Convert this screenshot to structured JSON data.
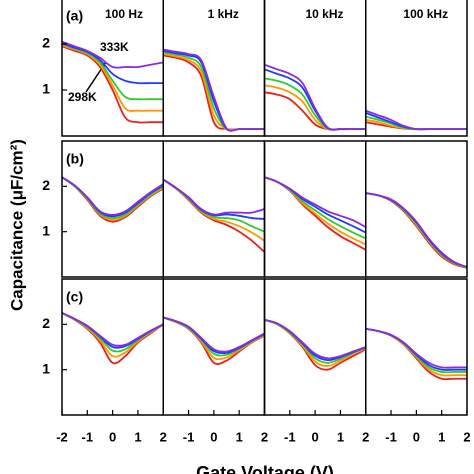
{
  "ylabel": "Capacitance (μF/cm²)",
  "xlabel": "Gate Voltage (V)",
  "chart_data": [
    {
      "type": "line",
      "title": "100 Hz",
      "panel_label": "(a)",
      "annotations": [
        "333K",
        "298K"
      ],
      "x": [
        -2,
        -1.5,
        -1,
        -0.5,
        0,
        0.5,
        1,
        1.5,
        2
      ],
      "xlim": [
        -2,
        2
      ],
      "ylim": [
        0,
        3
      ],
      "yticks": [
        1,
        2
      ],
      "series": [
        {
          "color": "#e8201e",
          "values": [
            1.95,
            1.85,
            1.75,
            1.5,
            1.0,
            0.4,
            0.3,
            0.3,
            0.3
          ]
        },
        {
          "color": "#ff9900",
          "values": [
            1.97,
            1.88,
            1.78,
            1.55,
            1.1,
            0.6,
            0.55,
            0.55,
            0.55
          ]
        },
        {
          "color": "#2ecc2e",
          "values": [
            2.0,
            1.9,
            1.8,
            1.6,
            1.2,
            0.85,
            0.8,
            0.8,
            0.8
          ]
        },
        {
          "color": "#1e3cff",
          "values": [
            2.02,
            1.92,
            1.83,
            1.65,
            1.35,
            1.2,
            1.15,
            1.15,
            1.15
          ]
        },
        {
          "color": "#8a2be2",
          "values": [
            2.05,
            1.95,
            1.85,
            1.7,
            1.5,
            1.5,
            1.5,
            1.55,
            1.6
          ]
        }
      ]
    },
    {
      "type": "line",
      "title": "1 kHz",
      "x": [
        -2,
        -1.5,
        -1,
        -0.5,
        0,
        0.5,
        1,
        1.5,
        2
      ],
      "xlim": [
        -2,
        2
      ],
      "ylim": [
        0,
        3
      ],
      "series": [
        {
          "color": "#e8201e",
          "values": [
            1.75,
            1.7,
            1.6,
            1.3,
            0.3,
            0.15,
            0.15,
            0.15,
            0.15
          ]
        },
        {
          "color": "#ff9900",
          "values": [
            1.78,
            1.73,
            1.65,
            1.4,
            0.45,
            0.15,
            0.15,
            0.15,
            0.15
          ]
        },
        {
          "color": "#2ecc2e",
          "values": [
            1.82,
            1.77,
            1.7,
            1.5,
            0.6,
            0.15,
            0.15,
            0.15,
            0.15
          ]
        },
        {
          "color": "#1e3cff",
          "values": [
            1.85,
            1.8,
            1.75,
            1.6,
            0.75,
            0.16,
            0.15,
            0.15,
            0.15
          ]
        },
        {
          "color": "#8a2be2",
          "values": [
            1.88,
            1.83,
            1.78,
            1.65,
            0.85,
            0.17,
            0.15,
            0.15,
            0.15
          ]
        }
      ]
    },
    {
      "type": "line",
      "title": "10 kHz",
      "x": [
        -2,
        -1.5,
        -1,
        -0.5,
        0,
        0.5,
        1,
        1.5,
        2
      ],
      "xlim": [
        -2,
        2
      ],
      "ylim": [
        0,
        3
      ],
      "series": [
        {
          "color": "#e8201e",
          "values": [
            0.95,
            0.9,
            0.8,
            0.55,
            0.25,
            0.15,
            0.15,
            0.15,
            0.15
          ]
        },
        {
          "color": "#ff9900",
          "values": [
            1.1,
            1.05,
            0.95,
            0.75,
            0.35,
            0.15,
            0.15,
            0.15,
            0.15
          ]
        },
        {
          "color": "#2ecc2e",
          "values": [
            1.25,
            1.2,
            1.1,
            0.9,
            0.45,
            0.16,
            0.15,
            0.15,
            0.15
          ]
        },
        {
          "color": "#1e3cff",
          "values": [
            1.45,
            1.35,
            1.25,
            1.05,
            0.55,
            0.17,
            0.15,
            0.15,
            0.15
          ]
        },
        {
          "color": "#8a2be2",
          "values": [
            1.55,
            1.45,
            1.35,
            1.15,
            0.6,
            0.18,
            0.15,
            0.15,
            0.15
          ]
        }
      ]
    },
    {
      "type": "line",
      "title": "100 kHz",
      "x": [
        -2,
        -1.5,
        -1,
        -0.5,
        0,
        0.5,
        1,
        1.5,
        2
      ],
      "xlim": [
        -2,
        2
      ],
      "ylim": [
        0,
        3
      ],
      "series": [
        {
          "color": "#e8201e",
          "values": [
            0.3,
            0.25,
            0.2,
            0.16,
            0.15,
            0.15,
            0.15,
            0.15,
            0.15
          ]
        },
        {
          "color": "#ff9900",
          "values": [
            0.35,
            0.3,
            0.22,
            0.17,
            0.15,
            0.15,
            0.15,
            0.15,
            0.15
          ]
        },
        {
          "color": "#2ecc2e",
          "values": [
            0.42,
            0.35,
            0.27,
            0.18,
            0.15,
            0.15,
            0.15,
            0.15,
            0.15
          ]
        },
        {
          "color": "#1e3cff",
          "values": [
            0.5,
            0.4,
            0.3,
            0.2,
            0.15,
            0.15,
            0.15,
            0.15,
            0.15
          ]
        },
        {
          "color": "#8a2be2",
          "values": [
            0.55,
            0.45,
            0.35,
            0.22,
            0.15,
            0.15,
            0.15,
            0.15,
            0.15
          ]
        }
      ]
    },
    {
      "type": "line",
      "panel_label": "(b)",
      "x": [
        -2,
        -1.5,
        -1,
        -0.5,
        0,
        0.5,
        1,
        1.5,
        2
      ],
      "xlim": [
        -2,
        2
      ],
      "ylim": [
        0,
        3
      ],
      "yticks": [
        1,
        2
      ],
      "series": [
        {
          "color": "#e8201e",
          "values": [
            2.2,
            2.0,
            1.7,
            1.35,
            1.22,
            1.32,
            1.55,
            1.78,
            1.95
          ]
        },
        {
          "color": "#ff9900",
          "values": [
            2.2,
            2.0,
            1.72,
            1.38,
            1.26,
            1.35,
            1.58,
            1.8,
            1.97
          ]
        },
        {
          "color": "#2ecc2e",
          "values": [
            2.2,
            2.0,
            1.73,
            1.4,
            1.3,
            1.38,
            1.6,
            1.82,
            2.0
          ]
        },
        {
          "color": "#1e3cff",
          "values": [
            2.2,
            2.02,
            1.75,
            1.43,
            1.34,
            1.42,
            1.63,
            1.85,
            2.02
          ]
        },
        {
          "color": "#8a2be2",
          "values": [
            2.2,
            2.02,
            1.76,
            1.45,
            1.37,
            1.45,
            1.66,
            1.87,
            2.05
          ]
        }
      ]
    },
    {
      "type": "line",
      "x": [
        -2,
        -1.5,
        -1,
        -0.5,
        0,
        0.5,
        1,
        1.5,
        2
      ],
      "xlim": [
        -2,
        2
      ],
      "ylim": [
        0,
        3
      ],
      "series": [
        {
          "color": "#e8201e",
          "values": [
            2.15,
            1.95,
            1.7,
            1.42,
            1.25,
            1.15,
            1.0,
            0.8,
            0.55
          ]
        },
        {
          "color": "#ff9900",
          "values": [
            2.15,
            1.95,
            1.72,
            1.44,
            1.28,
            1.22,
            1.12,
            0.98,
            0.8
          ]
        },
        {
          "color": "#2ecc2e",
          "values": [
            2.15,
            1.96,
            1.73,
            1.46,
            1.32,
            1.3,
            1.25,
            1.12,
            1.0
          ]
        },
        {
          "color": "#1e3cff",
          "values": [
            2.15,
            1.97,
            1.75,
            1.48,
            1.36,
            1.38,
            1.35,
            1.3,
            1.28
          ]
        },
        {
          "color": "#8a2be2",
          "values": [
            2.15,
            1.97,
            1.76,
            1.5,
            1.38,
            1.42,
            1.42,
            1.42,
            1.5
          ]
        }
      ]
    },
    {
      "type": "line",
      "x": [
        -2,
        -1.5,
        -1,
        -0.5,
        0,
        0.5,
        1,
        1.5,
        2
      ],
      "xlim": [
        -2,
        2
      ],
      "ylim": [
        0,
        3
      ],
      "series": [
        {
          "color": "#e8201e",
          "values": [
            2.2,
            2.1,
            1.9,
            1.6,
            1.35,
            1.1,
            0.9,
            0.75,
            0.6
          ]
        },
        {
          "color": "#ff9900",
          "values": [
            2.2,
            2.1,
            1.91,
            1.63,
            1.4,
            1.18,
            1.0,
            0.85,
            0.72
          ]
        },
        {
          "color": "#2ecc2e",
          "values": [
            2.2,
            2.1,
            1.92,
            1.67,
            1.47,
            1.28,
            1.12,
            0.98,
            0.85
          ]
        },
        {
          "color": "#1e3cff",
          "values": [
            2.2,
            2.1,
            1.94,
            1.72,
            1.55,
            1.38,
            1.25,
            1.12,
            0.98
          ]
        },
        {
          "color": "#8a2be2",
          "values": [
            2.2,
            2.1,
            1.95,
            1.75,
            1.6,
            1.45,
            1.35,
            1.25,
            1.1
          ]
        }
      ]
    },
    {
      "type": "line",
      "x": [
        -2,
        -1.5,
        -1,
        -0.5,
        0,
        0.5,
        1,
        1.5,
        2
      ],
      "xlim": [
        -2,
        2
      ],
      "ylim": [
        0,
        3
      ],
      "series": [
        {
          "color": "#e8201e",
          "values": [
            1.85,
            1.8,
            1.68,
            1.45,
            1.12,
            0.75,
            0.45,
            0.28,
            0.2
          ]
        },
        {
          "color": "#ff9900",
          "values": [
            1.85,
            1.8,
            1.69,
            1.47,
            1.15,
            0.78,
            0.48,
            0.3,
            0.2
          ]
        },
        {
          "color": "#2ecc2e",
          "values": [
            1.85,
            1.8,
            1.7,
            1.48,
            1.18,
            0.8,
            0.5,
            0.31,
            0.21
          ]
        },
        {
          "color": "#1e3cff",
          "values": [
            1.85,
            1.8,
            1.7,
            1.5,
            1.2,
            0.82,
            0.52,
            0.32,
            0.22
          ]
        },
        {
          "color": "#8a2be2",
          "values": [
            1.85,
            1.8,
            1.71,
            1.51,
            1.22,
            0.84,
            0.54,
            0.33,
            0.22
          ]
        }
      ]
    },
    {
      "type": "line",
      "panel_label": "(c)",
      "x": [
        -2,
        -1.5,
        -1,
        -0.5,
        0,
        0.5,
        1,
        1.5,
        2
      ],
      "xlim": [
        -2,
        2
      ],
      "xticks": [
        -2,
        -1,
        0,
        1,
        2
      ],
      "ylim": [
        0,
        3
      ],
      "yticks": [
        1,
        2
      ],
      "series": [
        {
          "color": "#e8201e",
          "values": [
            2.25,
            2.1,
            1.9,
            1.6,
            1.15,
            1.3,
            1.6,
            1.8,
            2.0
          ]
        },
        {
          "color": "#ff9900",
          "values": [
            2.25,
            2.1,
            1.92,
            1.65,
            1.3,
            1.38,
            1.63,
            1.82,
            2.0
          ]
        },
        {
          "color": "#2ecc2e",
          "values": [
            2.25,
            2.11,
            1.94,
            1.7,
            1.42,
            1.45,
            1.66,
            1.84,
            2.0
          ]
        },
        {
          "color": "#1e3cff",
          "values": [
            2.25,
            2.12,
            1.96,
            1.73,
            1.5,
            1.52,
            1.68,
            1.85,
            2.0
          ]
        },
        {
          "color": "#8a2be2",
          "values": [
            2.25,
            2.12,
            1.97,
            1.75,
            1.55,
            1.55,
            1.7,
            1.86,
            2.0
          ]
        }
      ]
    },
    {
      "type": "line",
      "x": [
        -2,
        -1.5,
        -1,
        -0.5,
        0,
        0.5,
        1,
        1.5,
        2
      ],
      "xlim": [
        -2,
        2
      ],
      "xticks": [
        -1,
        0,
        1,
        2
      ],
      "ylim": [
        0,
        3
      ],
      "series": [
        {
          "color": "#e8201e",
          "values": [
            2.15,
            2.05,
            1.9,
            1.6,
            1.15,
            1.2,
            1.4,
            1.6,
            1.75
          ]
        },
        {
          "color": "#ff9900",
          "values": [
            2.15,
            2.05,
            1.91,
            1.63,
            1.26,
            1.27,
            1.43,
            1.61,
            1.76
          ]
        },
        {
          "color": "#2ecc2e",
          "values": [
            2.15,
            2.06,
            1.92,
            1.66,
            1.35,
            1.33,
            1.46,
            1.63,
            1.78
          ]
        },
        {
          "color": "#1e3cff",
          "values": [
            2.15,
            2.07,
            1.94,
            1.68,
            1.41,
            1.37,
            1.48,
            1.64,
            1.79
          ]
        },
        {
          "color": "#8a2be2",
          "values": [
            2.15,
            2.07,
            1.95,
            1.7,
            1.45,
            1.4,
            1.5,
            1.65,
            1.8
          ]
        }
      ]
    },
    {
      "type": "line",
      "x": [
        -2,
        -1.5,
        -1,
        -0.5,
        0,
        0.5,
        1,
        1.5,
        2
      ],
      "xlim": [
        -2,
        2
      ],
      "xticks": [
        -1,
        0,
        1,
        2
      ],
      "ylim": [
        0,
        3
      ],
      "series": [
        {
          "color": "#e8201e",
          "values": [
            2.1,
            2.0,
            1.8,
            1.5,
            1.1,
            1.0,
            1.15,
            1.3,
            1.45
          ]
        },
        {
          "color": "#ff9900",
          "values": [
            2.1,
            2.0,
            1.81,
            1.53,
            1.18,
            1.08,
            1.2,
            1.34,
            1.47
          ]
        },
        {
          "color": "#2ecc2e",
          "values": [
            2.1,
            2.01,
            1.82,
            1.56,
            1.25,
            1.15,
            1.24,
            1.37,
            1.48
          ]
        },
        {
          "color": "#1e3cff",
          "values": [
            2.1,
            2.02,
            1.84,
            1.58,
            1.31,
            1.21,
            1.28,
            1.39,
            1.49
          ]
        },
        {
          "color": "#8a2be2",
          "values": [
            2.1,
            2.02,
            1.85,
            1.6,
            1.35,
            1.25,
            1.3,
            1.4,
            1.5
          ]
        }
      ]
    },
    {
      "type": "line",
      "x": [
        -2,
        -1.5,
        -1,
        -0.5,
        0,
        0.5,
        1,
        1.5,
        2
      ],
      "xlim": [
        -2,
        2
      ],
      "xticks": [
        -1,
        0,
        1,
        2
      ],
      "ylim": [
        0,
        3
      ],
      "series": [
        {
          "color": "#e8201e",
          "values": [
            1.9,
            1.85,
            1.75,
            1.55,
            1.25,
            0.95,
            0.8,
            0.8,
            0.8
          ]
        },
        {
          "color": "#ff9900",
          "values": [
            1.9,
            1.85,
            1.75,
            1.56,
            1.28,
            1.0,
            0.88,
            0.88,
            0.88
          ]
        },
        {
          "color": "#2ecc2e",
          "values": [
            1.9,
            1.85,
            1.76,
            1.58,
            1.3,
            1.05,
            0.95,
            0.95,
            0.95
          ]
        },
        {
          "color": "#1e3cff",
          "values": [
            1.9,
            1.85,
            1.76,
            1.59,
            1.33,
            1.1,
            1.0,
            1.0,
            1.0
          ]
        },
        {
          "color": "#8a2be2",
          "values": [
            1.9,
            1.85,
            1.77,
            1.6,
            1.35,
            1.15,
            1.05,
            1.05,
            1.05
          ]
        }
      ]
    }
  ]
}
